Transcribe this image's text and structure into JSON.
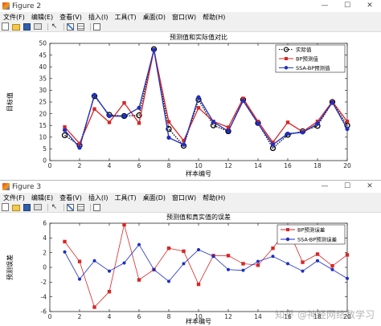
{
  "window1": {
    "title": "Figure 2",
    "menu": [
      "文件(F)",
      "编辑(E)",
      "查看(V)",
      "插入(I)",
      "工具(T)",
      "桌面(D)",
      "窗口(W)",
      "帮助(H)"
    ],
    "controls": {
      "minimize": "—",
      "maximize": "☐",
      "close": "✕"
    }
  },
  "window2": {
    "title": "Figure 3",
    "menu": [
      "文件(F)",
      "编辑(E)",
      "查看(V)",
      "插入(I)",
      "工具(T)",
      "桌面(D)",
      "窗口(W)",
      "帮助(H)"
    ],
    "controls": {
      "minimize": "—",
      "maximize": "☐",
      "close": "✕"
    }
  },
  "toolbar_icons": [
    "new-figure-icon",
    "open-file-icon",
    "save-icon",
    "print-icon",
    "edit-plot-cursor-icon",
    "insert-colorbar-icon",
    "insert-legend-icon",
    "dock-icon"
  ],
  "chart_data": [
    {
      "type": "line",
      "title": "预测值和实际值对比",
      "xlabel": "样本编号",
      "ylabel": "目标值",
      "xlim": [
        0,
        20
      ],
      "ylim": [
        0,
        50
      ],
      "xticks": [
        0,
        2,
        4,
        6,
        8,
        10,
        12,
        14,
        16,
        18,
        20
      ],
      "yticks": [
        0,
        5,
        10,
        15,
        20,
        25,
        30,
        35,
        40,
        45,
        50
      ],
      "grid": false,
      "legend_position": "top-right",
      "x": [
        1,
        2,
        3,
        4,
        5,
        6,
        7,
        8,
        9,
        10,
        11,
        12,
        13,
        14,
        15,
        16,
        17,
        18,
        19,
        20
      ],
      "series": [
        {
          "name": "实际值",
          "color": "#000000",
          "dash": "dotted",
          "marker": "circle-open",
          "values": [
            10.8,
            6.5,
            27.5,
            19.5,
            19,
            19.3,
            47.5,
            13.5,
            6.3,
            26,
            15,
            12.5,
            26,
            16,
            5.3,
            11,
            12.5,
            14.8,
            25,
            15
          ]
        },
        {
          "name": "BP预测值",
          "color": "#d62728",
          "dash": "solid",
          "marker": "square",
          "values": [
            14.3,
            7.3,
            22,
            16.3,
            24.6,
            16,
            47.2,
            16.5,
            8.5,
            22.5,
            16.7,
            14.2,
            26.5,
            16.7,
            7.8,
            16.3,
            12.3,
            16.7,
            25.2,
            16.7
          ]
        },
        {
          "name": "SSA-BP预测值",
          "color": "#1f2fbf",
          "dash": "solid",
          "marker": "circle-filled",
          "values": [
            13,
            5.5,
            28,
            19,
            18.9,
            22.5,
            47.2,
            9.8,
            6.8,
            27,
            16.5,
            12.5,
            25.5,
            15.8,
            6.8,
            11.5,
            12,
            15.7,
            24.8,
            13.5
          ]
        }
      ]
    },
    {
      "type": "line",
      "title": "预测值和真实值的误差",
      "xlabel": "样本编号",
      "ylabel": "预测误差",
      "xlim": [
        0,
        20
      ],
      "ylim": [
        -6,
        6
      ],
      "xticks": [
        0,
        2,
        4,
        6,
        8,
        10,
        12,
        14,
        16,
        18,
        20
      ],
      "yticks": [
        -6,
        -4,
        -2,
        0,
        2,
        4,
        6
      ],
      "grid": false,
      "legend_position": "top-right",
      "x": [
        1,
        2,
        3,
        4,
        5,
        6,
        7,
        8,
        9,
        10,
        11,
        12,
        13,
        14,
        15,
        16,
        17,
        18,
        19,
        20
      ],
      "series": [
        {
          "name": "BP预测误差",
          "color": "#d62728",
          "dash": "solid",
          "marker": "square",
          "values": [
            3.5,
            0.8,
            -5.4,
            -3.3,
            5.8,
            -1.7,
            -0.3,
            2.6,
            2.2,
            -2.3,
            1.6,
            1.6,
            0.5,
            0.3,
            2.6,
            5.3,
            0.7,
            1.8,
            0.2,
            1.7
          ]
        },
        {
          "name": "SSA-BP预测误差",
          "color": "#1f2fbf",
          "dash": "solid",
          "marker": "circle-filled",
          "values": [
            2.1,
            -1.6,
            0.9,
            -0.5,
            0.6,
            3.1,
            -0.3,
            -1.9,
            0.5,
            2.4,
            1.5,
            -0.3,
            -0.4,
            0.8,
            1.5,
            0.5,
            -0.5,
            0.9,
            -0.3,
            -1.5
          ]
        }
      ]
    }
  ],
  "watermark": "知乎 @神经网络数学习"
}
